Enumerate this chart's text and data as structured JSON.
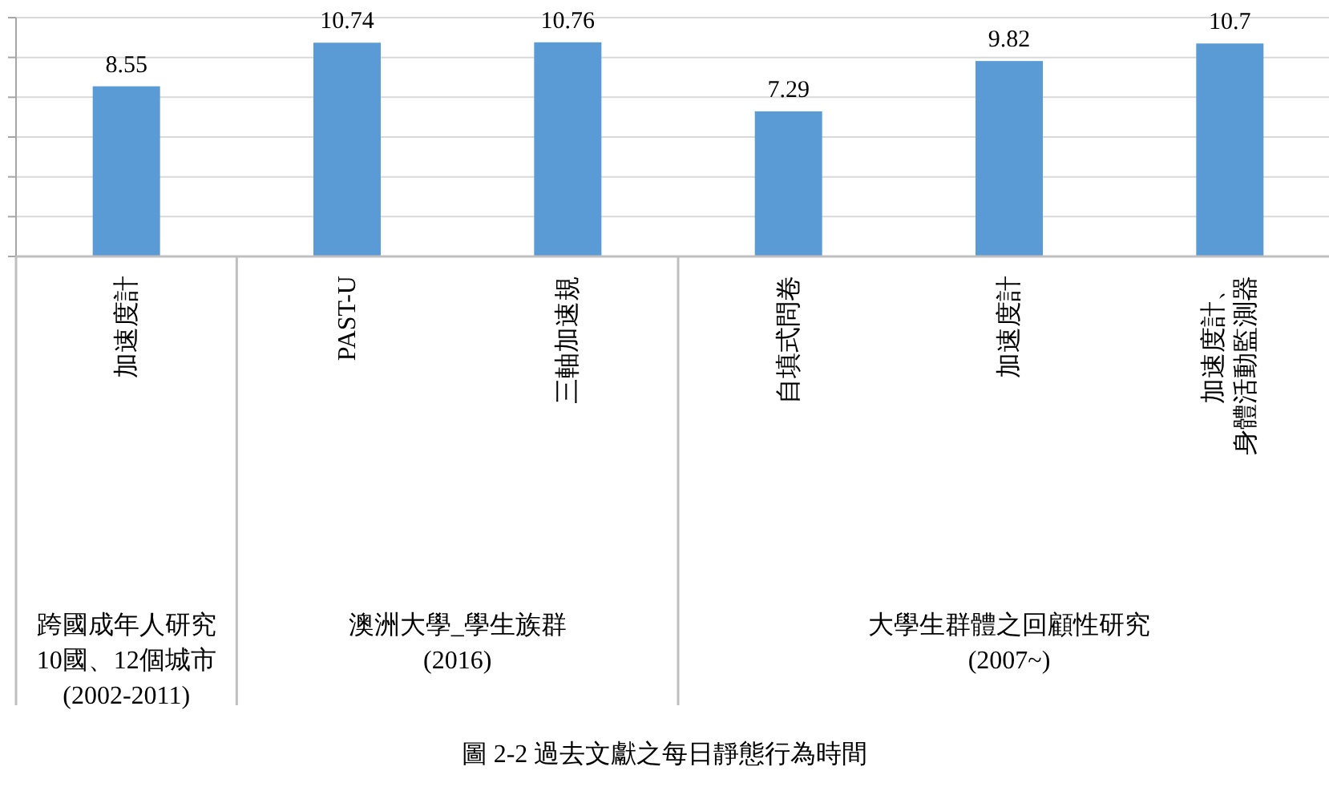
{
  "chart_data": {
    "type": "bar",
    "title": "圖 2-2 過去文獻之每日靜態行為時間",
    "categories": [
      "加速度計",
      "PAST-U",
      "三軸加速規",
      "自填式問卷",
      "加速度計",
      "加速度計、身體活動監測器"
    ],
    "values": [
      8.55,
      10.74,
      10.76,
      7.29,
      9.82,
      10.7
    ],
    "color": "#5b9bd5",
    "ylim": [
      0,
      12
    ],
    "yticks": [
      {
        "value": 0,
        "label": null
      },
      {
        "value": 2,
        "label": null
      },
      {
        "value": 4,
        "label": null
      },
      {
        "value": 6,
        "label": null
      },
      {
        "value": 8,
        "label": null
      },
      {
        "value": 10,
        "label": null
      },
      {
        "value": 12,
        "label": null
      }
    ],
    "grid": "y",
    "data_labels": true,
    "tick_labels": "x",
    "annotations": [
      "跨國成年人研究\n10國、12個城市\n(2002-2011)",
      "澳洲大學_學生族群\n(2016)",
      "大學生群體之回顧性研究\n(2007~)"
    ]
  }
}
